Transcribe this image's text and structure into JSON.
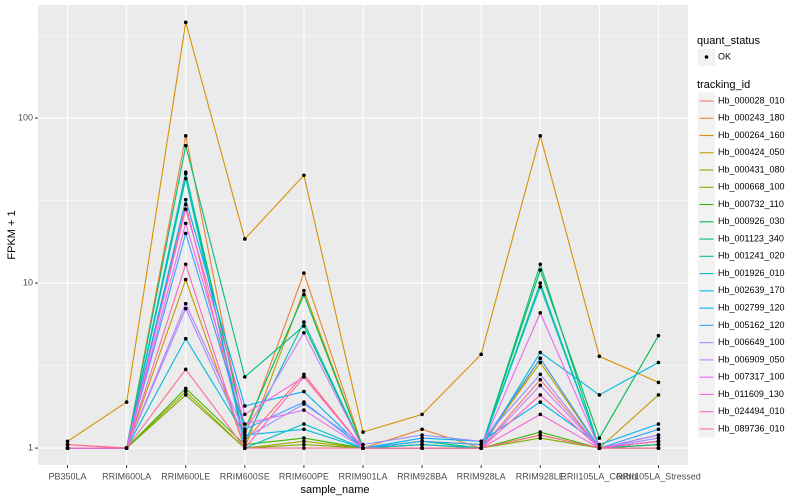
{
  "chart_data": {
    "type": "line",
    "x_label": "sample_name",
    "y_label": "FPKM + 1",
    "categories": [
      "PB350LA",
      "RRIM600LA",
      "RRIM600LE",
      "RRIM600SE",
      "RRIM600PE",
      "RRIM901LA",
      "RRIM928BA",
      "RRIM928LA",
      "RRIM928LE",
      "RRII105LA_Control",
      "RRII105LA_Stressed"
    ],
    "y_scale": "log",
    "ylim": [
      0.79,
      484
    ],
    "yticks": [
      1,
      10,
      100
    ],
    "minor_yticks": [
      3.162,
      31.62,
      316.2
    ],
    "grid": true,
    "point_color": "#000000",
    "legend_position": "right",
    "point_legend": {
      "title": "quant_status",
      "labels": [
        "OK"
      ]
    },
    "legend_title": "tracking_id",
    "series": [
      {
        "name": "Hb_000028_010",
        "color": "#F8766D",
        "values": [
          1.0,
          1.0,
          30,
          1.1,
          2.8,
          1.0,
          1.05,
          1.0,
          2.6,
          1.0,
          1.1
        ]
      },
      {
        "name": "Hb_000243_180",
        "color": "#EA8331",
        "values": [
          1.05,
          1.0,
          78,
          1.2,
          11.5,
          1.0,
          1.3,
          1.0,
          3.5,
          1.0,
          1.05
        ]
      },
      {
        "name": "Hb_000264_160",
        "color": "#D89000",
        "values": [
          1.1,
          1.9,
          380,
          18.5,
          45,
          1.25,
          1.6,
          3.7,
          78,
          3.6,
          2.5
        ]
      },
      {
        "name": "Hb_000424_050",
        "color": "#C09B00",
        "values": [
          1.0,
          1.0,
          10.5,
          1.0,
          9,
          1.0,
          1.1,
          1.05,
          3.3,
          1.0,
          2.1
        ]
      },
      {
        "name": "Hb_000431_080",
        "color": "#A3A500",
        "values": [
          1.0,
          1.0,
          2.2,
          1.0,
          1.1,
          1.0,
          1.0,
          1.0,
          1.2,
          1.0,
          1.0
        ]
      },
      {
        "name": "Hb_000668_100",
        "color": "#7CAE00",
        "values": [
          1.0,
          1.0,
          2.1,
          1.0,
          1.05,
          1.0,
          1.0,
          1.0,
          1.15,
          1.0,
          1.0
        ]
      },
      {
        "name": "Hb_000732_110",
        "color": "#39B600",
        "values": [
          1.0,
          1.0,
          2.3,
          1.05,
          1.15,
          1.0,
          1.0,
          1.0,
          1.25,
          1.0,
          1.05
        ]
      },
      {
        "name": "Hb_000926_030",
        "color": "#00BB4E",
        "values": [
          1.0,
          1.0,
          46,
          1.3,
          8.5,
          1.0,
          1.05,
          1.0,
          12,
          1.15,
          4.8
        ]
      },
      {
        "name": "Hb_001123_340",
        "color": "#00BF7D",
        "values": [
          1.0,
          1.0,
          68,
          2.7,
          5.5,
          1.0,
          1.1,
          1.0,
          13,
          1.0,
          1.05
        ]
      },
      {
        "name": "Hb_001241_020",
        "color": "#00C1A3",
        "values": [
          1.0,
          1.0,
          43,
          1.1,
          5.8,
          1.0,
          1.0,
          1.0,
          10,
          1.0,
          1.1
        ]
      },
      {
        "name": "Hb_001926_010",
        "color": "#00BFC4",
        "values": [
          1.0,
          1.0,
          47,
          1.0,
          1.4,
          1.0,
          1.05,
          1.0,
          9.5,
          1.0,
          1.2
        ]
      },
      {
        "name": "Hb_002639_170",
        "color": "#00BAE0",
        "values": [
          1.0,
          1.0,
          4.6,
          1.2,
          1.3,
          1.0,
          1.0,
          1.0,
          3.8,
          2.1,
          3.3
        ]
      },
      {
        "name": "Hb_002799_120",
        "color": "#00B0F6",
        "values": [
          1.0,
          1.0,
          32,
          1.8,
          2.2,
          1.0,
          1.15,
          1.1,
          1.9,
          1.05,
          1.4
        ]
      },
      {
        "name": "Hb_005162_120",
        "color": "#35A2FF",
        "values": [
          1.0,
          1.0,
          20,
          1.3,
          1.9,
          1.0,
          1.1,
          1.05,
          3.5,
          1.0,
          1.3
        ]
      },
      {
        "name": "Hb_006649_100",
        "color": "#9590FF",
        "values": [
          1.0,
          1.0,
          7,
          1.15,
          1.85,
          1.05,
          1.2,
          1.1,
          2.8,
          1.0,
          1.15
        ]
      },
      {
        "name": "Hb_006909_050",
        "color": "#C77CFF",
        "values": [
          1.0,
          1.0,
          7.5,
          1.25,
          5,
          1.0,
          1.0,
          1.0,
          2.4,
          1.0,
          1.2
        ]
      },
      {
        "name": "Hb_007317_100",
        "color": "#E76BF3",
        "values": [
          1.0,
          1.0,
          23,
          1.4,
          1.7,
          1.0,
          1.0,
          1.0,
          6.6,
          1.0,
          1.0
        ]
      },
      {
        "name": "Hb_011609_130",
        "color": "#FA62DB",
        "values": [
          1.0,
          1.0,
          28,
          1.6,
          2.7,
          1.0,
          1.0,
          1.0,
          1.6,
          1.0,
          1.1
        ]
      },
      {
        "name": "Hb_024494_010",
        "color": "#FF62BC",
        "values": [
          1.0,
          1.0,
          13,
          1.0,
          2.7,
          1.0,
          1.0,
          1.0,
          2.1,
          1.0,
          1.1
        ]
      },
      {
        "name": "Hb_089736_010",
        "color": "#FF6C91",
        "values": [
          1.05,
          1.0,
          3,
          1.0,
          1.0,
          1.0,
          1.0,
          1.0,
          1.2,
          1.0,
          1.0
        ]
      }
    ]
  }
}
